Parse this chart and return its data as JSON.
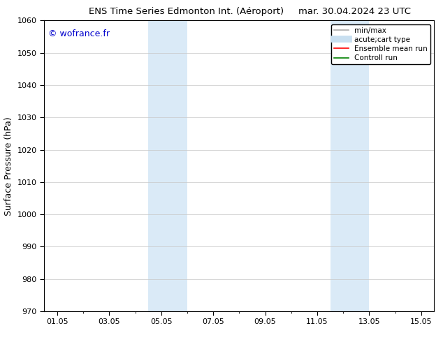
{
  "title_left": "ENS Time Series Edmonton Int. (Aéroport)",
  "title_right": "mar. 30.04.2024 23 UTC",
  "ylabel": "Surface Pressure (hPa)",
  "xlabel": "",
  "watermark": "© wofrance.fr",
  "ylim": [
    970,
    1060
  ],
  "yticks": [
    970,
    980,
    990,
    1000,
    1010,
    1020,
    1030,
    1040,
    1050,
    1060
  ],
  "xlim": [
    0.5,
    15.5
  ],
  "xtick_positions": [
    1.0,
    3.0,
    5.0,
    7.0,
    9.0,
    11.0,
    13.0,
    15.0
  ],
  "xtick_labels": [
    "01.05",
    "03.05",
    "05.05",
    "07.05",
    "09.05",
    "11.05",
    "13.05",
    "15.05"
  ],
  "shaded_bands": [
    {
      "xmin": 4.5,
      "xmax": 5.5,
      "color": "#daeaf7"
    },
    {
      "xmin": 5.5,
      "xmax": 6.0,
      "color": "#daeaf7"
    },
    {
      "xmin": 11.5,
      "xmax": 12.0,
      "color": "#daeaf7"
    },
    {
      "xmin": 12.0,
      "xmax": 13.0,
      "color": "#daeaf7"
    }
  ],
  "legend_entries": [
    {
      "label": "min/max",
      "color": "#aaaaaa",
      "linewidth": 1.2,
      "linestyle": "-"
    },
    {
      "label": "acute;cart type",
      "color": "#c8dff0",
      "linewidth": 7,
      "linestyle": "-"
    },
    {
      "label": "Ensemble mean run",
      "color": "#ff0000",
      "linewidth": 1.2,
      "linestyle": "-"
    },
    {
      "label": "Controll run",
      "color": "#008000",
      "linewidth": 1.2,
      "linestyle": "-"
    }
  ],
  "bg_color": "#ffffff",
  "plot_bg_color": "#ffffff",
  "grid_color": "#c8c8c8",
  "title_fontsize": 9.5,
  "watermark_color": "#0000cc",
  "watermark_fontsize": 9,
  "tick_fontsize": 8,
  "ylabel_fontsize": 9,
  "legend_fontsize": 7.5
}
